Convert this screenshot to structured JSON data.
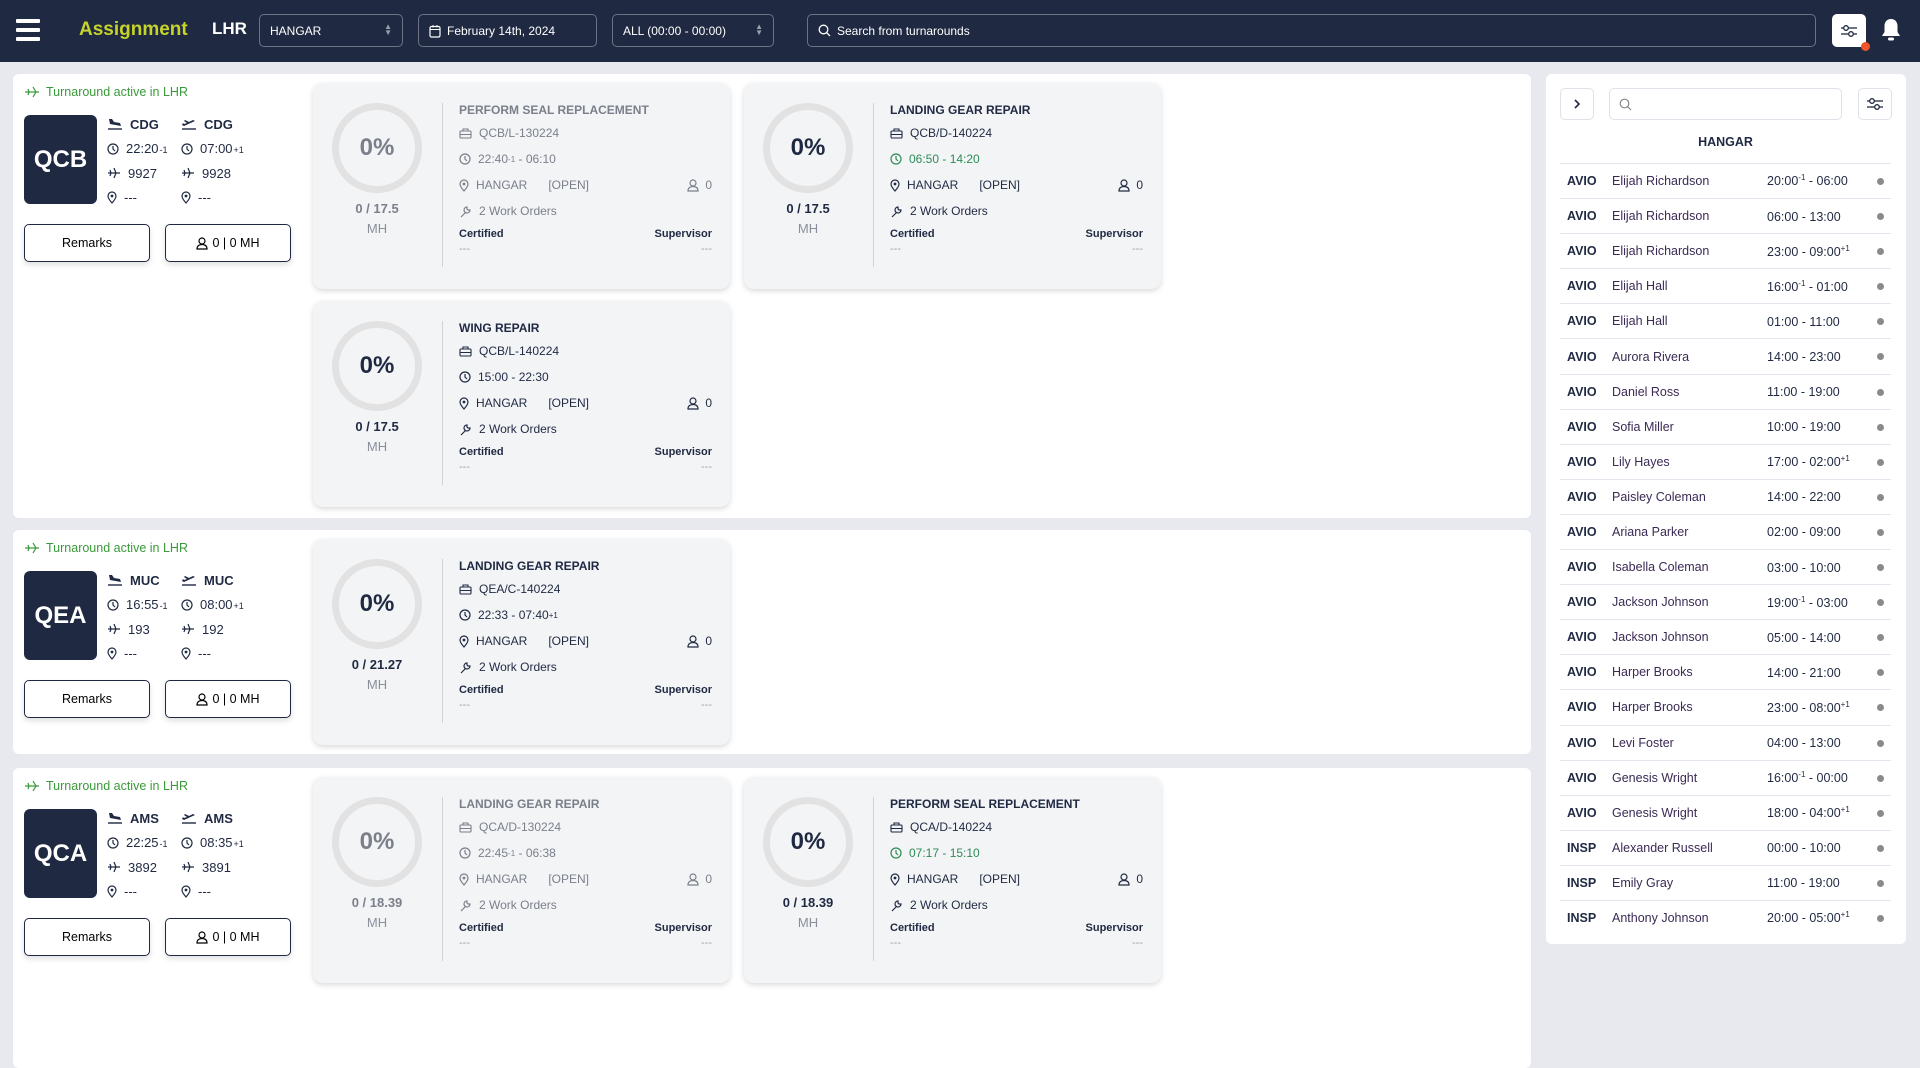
{
  "header": {
    "title": "Assignment",
    "station": "LHR",
    "area_select": "HANGAR",
    "date": "February 14th, 2024",
    "shift_select": "ALL (00:00 - 00:00)",
    "search_placeholder": "Search from turnarounds",
    "filter_has_alert": true
  },
  "colors": {
    "navy": "#1f2942",
    "title_accent": "#c5d32a",
    "active_green": "#3a9a3a",
    "late_red": "#f07a5a",
    "ontime_green": "#2e8b57",
    "alert_dot": "#f0552e"
  },
  "turnarounds": [
    {
      "status": "Turnaround active in LHR",
      "registration": "QCB",
      "arrival": {
        "airport": "CDG",
        "time": "22:20",
        "offset": "-1",
        "flight": "9927",
        "stand": "---"
      },
      "departure": {
        "airport": "CDG",
        "time": "07:00",
        "offset": "+1",
        "flight": "9928",
        "stand": "---"
      },
      "remarks_label": "Remarks",
      "crew_label": "0 | 0 MH",
      "tasks": [
        {
          "title": "PERFORM SEAL REPLACEMENT",
          "wo": "QCB/L-130224",
          "start": "22:40",
          "start_offset": "-1",
          "end": "06:10",
          "end_offset": "",
          "time_status": "late",
          "location": "HANGAR",
          "state": "[OPEN]",
          "crew": "0",
          "work_orders": "2 Work Orders",
          "progress": "0%",
          "mh": "0 / 17.5",
          "mh_unit": "MH",
          "certified_label": "Certified",
          "certified": "---",
          "supervisor_label": "Supervisor",
          "supervisor": "---",
          "past": true
        },
        {
          "title": "LANDING GEAR REPAIR",
          "wo": "QCB/D-140224",
          "start": "06:50",
          "start_offset": "",
          "end": "14:20",
          "end_offset": "",
          "time_status": "ontime",
          "location": "HANGAR",
          "state": "[OPEN]",
          "crew": "0",
          "work_orders": "2 Work Orders",
          "progress": "0%",
          "mh": "0 / 17.5",
          "mh_unit": "MH",
          "certified_label": "Certified",
          "certified": "---",
          "supervisor_label": "Supervisor",
          "supervisor": "---",
          "past": false
        },
        {
          "title": "WING REPAIR",
          "wo": "QCB/L-140224",
          "start": "15:00",
          "start_offset": "",
          "end": "22:30",
          "end_offset": "",
          "time_status": "normal",
          "location": "HANGAR",
          "state": "[OPEN]",
          "crew": "0",
          "work_orders": "2 Work Orders",
          "progress": "0%",
          "mh": "0 / 17.5",
          "mh_unit": "MH",
          "certified_label": "Certified",
          "certified": "---",
          "supervisor_label": "Supervisor",
          "supervisor": "---",
          "past": false
        }
      ]
    },
    {
      "status": "Turnaround active in LHR",
      "registration": "QEA",
      "arrival": {
        "airport": "MUC",
        "time": "16:55",
        "offset": "-1",
        "flight": "193",
        "stand": "---"
      },
      "departure": {
        "airport": "MUC",
        "time": "08:00",
        "offset": "+1",
        "flight": "192",
        "stand": "---"
      },
      "remarks_label": "Remarks",
      "crew_label": "0 | 0 MH",
      "tasks": [
        {
          "title": "LANDING GEAR REPAIR",
          "wo": "QEA/C-140224",
          "start": "22:33",
          "start_offset": "",
          "end": "07:40",
          "end_offset": "+1",
          "time_status": "normal",
          "location": "HANGAR",
          "state": "[OPEN]",
          "crew": "0",
          "work_orders": "2 Work Orders",
          "progress": "0%",
          "mh": "0 / 21.27",
          "mh_unit": "MH",
          "certified_label": "Certified",
          "certified": "---",
          "supervisor_label": "Supervisor",
          "supervisor": "---",
          "past": false
        }
      ]
    },
    {
      "status": "Turnaround active in LHR",
      "registration": "QCA",
      "arrival": {
        "airport": "AMS",
        "time": "22:25",
        "offset": "-1",
        "flight": "3892",
        "stand": "---"
      },
      "departure": {
        "airport": "AMS",
        "time": "08:35",
        "offset": "+1",
        "flight": "3891",
        "stand": "---"
      },
      "remarks_label": "Remarks",
      "crew_label": "0 | 0 MH",
      "tasks": [
        {
          "title": "LANDING GEAR REPAIR",
          "wo": "QCA/D-130224",
          "start": "22:45",
          "start_offset": "-1",
          "end": "06:38",
          "end_offset": "",
          "time_status": "late",
          "location": "HANGAR",
          "state": "[OPEN]",
          "crew": "0",
          "work_orders": "2 Work Orders",
          "progress": "0%",
          "mh": "0 / 18.39",
          "mh_unit": "MH",
          "certified_label": "Certified",
          "certified": "---",
          "supervisor_label": "Supervisor",
          "supervisor": "---",
          "past": true
        },
        {
          "title": "PERFORM SEAL REPLACEMENT",
          "wo": "QCA/D-140224",
          "start": "07:17",
          "start_offset": "",
          "end": "15:10",
          "end_offset": "",
          "time_status": "ontime",
          "location": "HANGAR",
          "state": "[OPEN]",
          "crew": "0",
          "work_orders": "2 Work Orders",
          "progress": "0%",
          "mh": "0 / 18.39",
          "mh_unit": "MH",
          "certified_label": "Certified",
          "certified": "---",
          "supervisor_label": "Supervisor",
          "supervisor": "---",
          "past": false
        }
      ]
    }
  ],
  "staff_panel": {
    "search_placeholder": "",
    "group_title": "HANGAR",
    "rows": [
      {
        "code": "AVIO",
        "name": "Elijah Richardson",
        "start": "20:00",
        "start_offset": "-1",
        "end": "06:00",
        "end_offset": ""
      },
      {
        "code": "AVIO",
        "name": "Elijah Richardson",
        "start": "06:00",
        "start_offset": "",
        "end": "13:00",
        "end_offset": ""
      },
      {
        "code": "AVIO",
        "name": "Elijah Richardson",
        "start": "23:00",
        "start_offset": "",
        "end": "09:00",
        "end_offset": "+1"
      },
      {
        "code": "AVIO",
        "name": "Elijah Hall",
        "start": "16:00",
        "start_offset": "-1",
        "end": "01:00",
        "end_offset": ""
      },
      {
        "code": "AVIO",
        "name": "Elijah Hall",
        "start": "01:00",
        "start_offset": "",
        "end": "11:00",
        "end_offset": ""
      },
      {
        "code": "AVIO",
        "name": "Aurora Rivera",
        "start": "14:00",
        "start_offset": "",
        "end": "23:00",
        "end_offset": ""
      },
      {
        "code": "AVIO",
        "name": "Daniel Ross",
        "start": "11:00",
        "start_offset": "",
        "end": "19:00",
        "end_offset": ""
      },
      {
        "code": "AVIO",
        "name": "Sofia Miller",
        "start": "10:00",
        "start_offset": "",
        "end": "19:00",
        "end_offset": ""
      },
      {
        "code": "AVIO",
        "name": "Lily Hayes",
        "start": "17:00",
        "start_offset": "",
        "end": "02:00",
        "end_offset": "+1"
      },
      {
        "code": "AVIO",
        "name": "Paisley Coleman",
        "start": "14:00",
        "start_offset": "",
        "end": "22:00",
        "end_offset": ""
      },
      {
        "code": "AVIO",
        "name": "Ariana Parker",
        "start": "02:00",
        "start_offset": "",
        "end": "09:00",
        "end_offset": ""
      },
      {
        "code": "AVIO",
        "name": "Isabella Coleman",
        "start": "03:00",
        "start_offset": "",
        "end": "10:00",
        "end_offset": ""
      },
      {
        "code": "AVIO",
        "name": "Jackson Johnson",
        "start": "19:00",
        "start_offset": "-1",
        "end": "03:00",
        "end_offset": ""
      },
      {
        "code": "AVIO",
        "name": "Jackson Johnson",
        "start": "05:00",
        "start_offset": "",
        "end": "14:00",
        "end_offset": ""
      },
      {
        "code": "AVIO",
        "name": "Harper Brooks",
        "start": "14:00",
        "start_offset": "",
        "end": "21:00",
        "end_offset": ""
      },
      {
        "code": "AVIO",
        "name": "Harper Brooks",
        "start": "23:00",
        "start_offset": "",
        "end": "08:00",
        "end_offset": "+1"
      },
      {
        "code": "AVIO",
        "name": "Levi Foster",
        "start": "04:00",
        "start_offset": "",
        "end": "13:00",
        "end_offset": ""
      },
      {
        "code": "AVIO",
        "name": "Genesis Wright",
        "start": "16:00",
        "start_offset": "-1",
        "end": "00:00",
        "end_offset": ""
      },
      {
        "code": "AVIO",
        "name": "Genesis Wright",
        "start": "18:00",
        "start_offset": "",
        "end": "04:00",
        "end_offset": "+1"
      },
      {
        "code": "INSP",
        "name": "Alexander Russell",
        "start": "00:00",
        "start_offset": "",
        "end": "10:00",
        "end_offset": ""
      },
      {
        "code": "INSP",
        "name": "Emily Gray",
        "start": "11:00",
        "start_offset": "",
        "end": "19:00",
        "end_offset": ""
      },
      {
        "code": "INSP",
        "name": "Anthony Johnson",
        "start": "20:00",
        "start_offset": "",
        "end": "05:00",
        "end_offset": "+1"
      }
    ]
  }
}
